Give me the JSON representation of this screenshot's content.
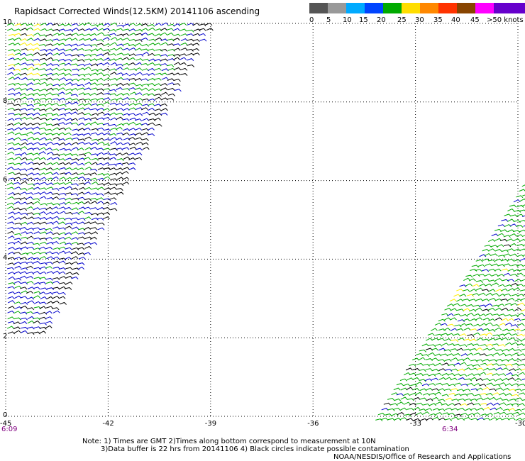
{
  "title": "Rapidsact Corrected Winds(12.5KM) 20141106 ascending",
  "legend": {
    "labels": [
      "0",
      "5",
      "10",
      "15",
      "20",
      "25",
      "30",
      "35",
      "40",
      "45",
      ">50 knots"
    ],
    "colors": [
      "#555555",
      "#999999",
      "#00aaff",
      "#0044ff",
      "#00aa00",
      "#ffdd00",
      "#ff8800",
      "#ff3300",
      "#884400",
      "#ff00ff",
      "#6600cc"
    ]
  },
  "x_ticks": [
    "-45",
    "-42",
    "-39",
    "-36",
    "-33",
    "-30"
  ],
  "y_ticks": [
    "10",
    "8",
    "6",
    "4",
    "2",
    "0"
  ],
  "times": {
    "left": "6:09",
    "right": "6:34"
  },
  "notes": {
    "line1": "Note: 1) Times are GMT 2)Times along bottom correspond to measurement at 10N",
    "line2": "3)Data buffer is 22 hrs from 20141106 4) Black circles indicate possible contamination",
    "credit": "NOAA/NESDIS/Office of Research and Applications"
  },
  "map": {
    "lon_range": [
      -45,
      -30
    ],
    "lat_range": [
      0,
      10
    ],
    "wind_colors": {
      "black": "#000000",
      "blue": "#0000cc",
      "green": "#00aa00",
      "yellow": "#ffee00"
    }
  }
}
